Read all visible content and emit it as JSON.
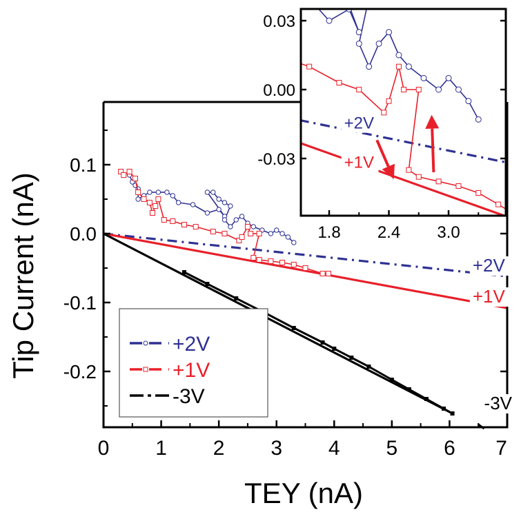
{
  "chart_data": [
    {
      "type": "line",
      "role": "main",
      "xlabel": "TEY (nA)",
      "ylabel": "Tip Current (nA)",
      "xlim": [
        0,
        7
      ],
      "ylim": [
        -0.28,
        0.19
      ],
      "xticks": [
        "0",
        "1",
        "2",
        "3",
        "4",
        "5",
        "6",
        "7"
      ],
      "yticks": [
        "0.1",
        "0.0",
        "-0.1",
        "-0.2"
      ],
      "grid": false,
      "legend": {
        "position": "bottom-left",
        "entries": [
          "+2V",
          "+1V",
          "-3V"
        ]
      },
      "colors": {
        "+2V": "#2e3192",
        "+1V": "#e8202a",
        "-3V": "#000000"
      },
      "series": [
        {
          "name": "+2V",
          "marker": "circle",
          "x": [
            0.45,
            0.5,
            0.55,
            0.6,
            0.6,
            0.7,
            0.8,
            0.95,
            1.1,
            1.2,
            1.3,
            1.55,
            1.8,
            2.0,
            2.1,
            1.8,
            1.9,
            2.0,
            2.1,
            2.2,
            2.1,
            2.2,
            2.3,
            2.4,
            2.5,
            2.6,
            2.75,
            2.9,
            3.0,
            3.1,
            3.2,
            3.3
          ],
          "y": [
            0.085,
            0.075,
            0.07,
            0.065,
            0.05,
            0.055,
            0.06,
            0.06,
            0.06,
            0.055,
            0.045,
            0.042,
            0.03,
            0.035,
            0.025,
            0.06,
            0.06,
            0.05,
            0.045,
            0.04,
            0.02,
            0.01,
            0.02,
            0.025,
            0.015,
            0.01,
            0.005,
            0.0,
            0.005,
            0.0,
            -0.005,
            -0.013
          ]
        },
        {
          "name": "+1V",
          "marker": "square",
          "x": [
            0.3,
            0.35,
            0.45,
            0.55,
            0.6,
            0.7,
            0.8,
            0.85,
            0.9,
            0.95,
            1.05,
            1.2,
            1.4,
            1.6,
            1.9,
            2.1,
            2.35,
            2.4,
            2.5,
            2.55,
            2.7,
            2.6,
            2.7,
            2.9,
            3.1,
            3.3,
            3.5,
            3.8,
            3.9
          ],
          "y": [
            0.09,
            0.085,
            0.09,
            0.08,
            0.06,
            0.05,
            0.045,
            0.03,
            0.04,
            0.05,
            0.02,
            0.018,
            0.013,
            0.01,
            0.003,
            0.0,
            -0.01,
            -0.005,
            0.01,
            0.0,
            0.0,
            -0.035,
            -0.038,
            -0.04,
            -0.042,
            -0.045,
            -0.05,
            -0.058,
            -0.058
          ]
        },
        {
          "name": "-3V",
          "marker": "square",
          "x": [
            1.4,
            1.8,
            2.3,
            2.8,
            3.3,
            3.8,
            4.0,
            4.3,
            4.6,
            5.0,
            5.3,
            5.6,
            5.9,
            6.05
          ],
          "y": [
            -0.056,
            -0.073,
            -0.094,
            -0.115,
            -0.137,
            -0.158,
            -0.167,
            -0.18,
            -0.193,
            -0.212,
            -0.226,
            -0.24,
            -0.254,
            -0.261
          ]
        }
      ],
      "fits": [
        {
          "name": "+2V",
          "style": "dash-dot",
          "x": [
            0,
            7
          ],
          "y": [
            0,
            -0.062
          ]
        },
        {
          "name": "+1V",
          "style": "solid",
          "x": [
            0,
            7
          ],
          "y": [
            0,
            -0.108
          ]
        },
        {
          "name": "-3V",
          "style": "solid",
          "x": [
            0,
            6.05
          ],
          "y": [
            0,
            -0.261
          ]
        }
      ],
      "annotations": [
        {
          "text": "+2V",
          "x": 6.4,
          "y": -0.055
        },
        {
          "text": "+1V",
          "x": 6.4,
          "y": -0.1
        },
        {
          "text": "-3V",
          "x": 6.6,
          "y": -0.255
        }
      ]
    },
    {
      "type": "line",
      "role": "inset",
      "xlim": [
        1.5,
        3.6
      ],
      "ylim": [
        -0.055,
        0.035
      ],
      "xticks": [
        "1.8",
        "2.4",
        "3.0"
      ],
      "yticks": [
        "0.03",
        "0.00",
        "-0.03"
      ],
      "annotations": [
        {
          "text": "+2V",
          "x": 1.95,
          "y": -0.017
        },
        {
          "text": "+1V",
          "x": 1.95,
          "y": -0.034
        }
      ],
      "arrows": [
        {
          "direction": "down",
          "from": [
            2.28,
            -0.022
          ],
          "to": [
            2.45,
            -0.039
          ]
        },
        {
          "direction": "up",
          "from": [
            2.85,
            -0.036
          ],
          "to": [
            2.83,
            -0.011
          ]
        }
      ]
    }
  ]
}
